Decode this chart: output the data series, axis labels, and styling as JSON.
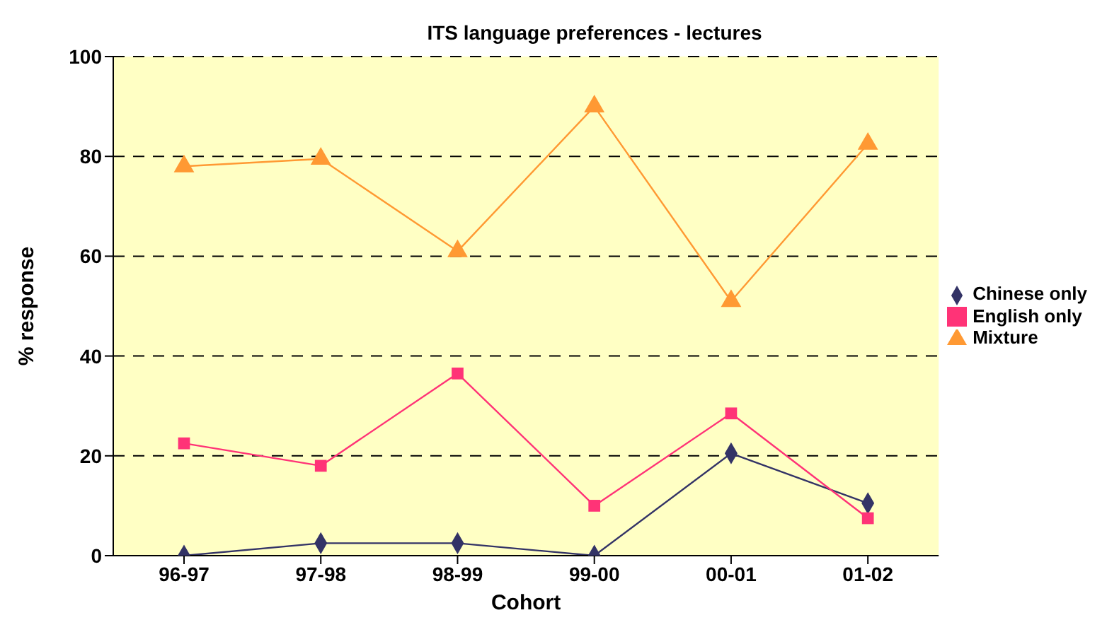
{
  "chart_data": {
    "type": "line",
    "title": "ITS language preferences - lectures",
    "xlabel": "Cohort",
    "ylabel": "% response",
    "categories": [
      "96-97",
      "97-98",
      "98-99",
      "99-00",
      "00-01",
      "01-02"
    ],
    "series": [
      {
        "name": "Chinese only",
        "color": "#333366",
        "marker": "diamond",
        "values": [
          0,
          2.5,
          2.5,
          0,
          20.5,
          10.5
        ]
      },
      {
        "name": "English only",
        "color": "#ff3377",
        "marker": "square",
        "values": [
          22.5,
          18,
          36.5,
          10,
          28.5,
          7.5
        ]
      },
      {
        "name": "Mixture",
        "color": "#ff9933",
        "marker": "triangle",
        "values": [
          78,
          79.5,
          61,
          90,
          51,
          82.5
        ]
      }
    ],
    "ylim": [
      0,
      100
    ],
    "yticks": [
      0,
      20,
      40,
      60,
      80,
      100
    ],
    "grid": "y",
    "legend": "right",
    "line_style": "solid"
  }
}
